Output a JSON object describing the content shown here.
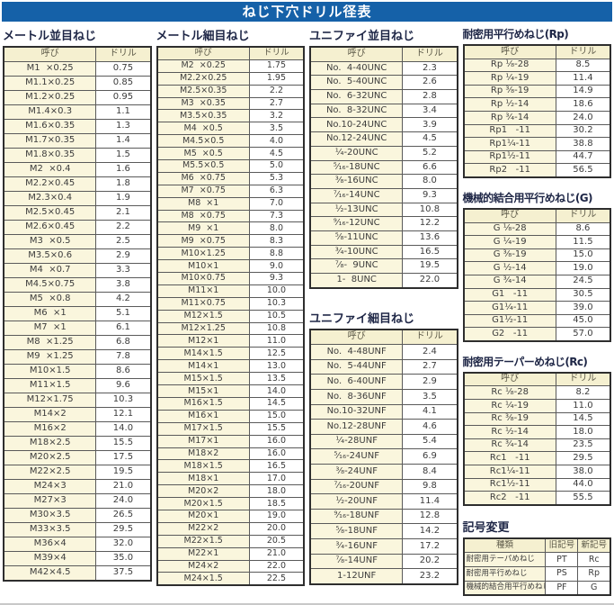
{
  "page": {
    "title": "ねじ下穴ドリル径表"
  },
  "colors": {
    "banner_bg": "#1561a8",
    "banner_text": "#ffffff",
    "title_text": "#1e2646",
    "header_cell_bg": "#f5f0d0",
    "name_cell_bg": "#faf6dd",
    "value_cell_bg": "#ffffff",
    "border": "#5a5a5a"
  },
  "sections": {
    "metric_coarse": {
      "title": "メートル並目ねじ",
      "headers": [
        "呼び",
        "ドリル"
      ],
      "rows": [
        [
          "M1  ×0.25",
          "0.75"
        ],
        [
          "M1.1×0.25",
          "0.85"
        ],
        [
          "M1.2×0.25",
          "0.95"
        ],
        [
          "M1.4×0.3",
          "1.1"
        ],
        [
          "M1.6×0.35",
          "1.3"
        ],
        [
          "M1.7×0.35",
          "1.4"
        ],
        [
          "M1.8×0.35",
          "1.5"
        ],
        [
          "M2  ×0.4",
          "1.6"
        ],
        [
          "M2.2×0.45",
          "1.8"
        ],
        [
          "M2.3×0.4",
          "1.9"
        ],
        [
          "M2.5×0.45",
          "2.1"
        ],
        [
          "M2.6×0.45",
          "2.2"
        ],
        [
          "M3  ×0.5",
          "2.5"
        ],
        [
          "M3.5×0.6",
          "2.9"
        ],
        [
          "M4  ×0.7",
          "3.3"
        ],
        [
          "M4.5×0.75",
          "3.8"
        ],
        [
          "M5  ×0.8",
          "4.2"
        ],
        [
          "M6  ×1",
          "5.1"
        ],
        [
          "M7  ×1",
          "6.1"
        ],
        [
          "M8  ×1.25",
          "6.8"
        ],
        [
          "M9  ×1.25",
          "7.8"
        ],
        [
          "M10×1.5",
          "8.6"
        ],
        [
          "M11×1.5",
          "9.6"
        ],
        [
          "M12×1.75",
          "10.3"
        ],
        [
          "M14×2",
          "12.1"
        ],
        [
          "M16×2",
          "14.0"
        ],
        [
          "M18×2.5",
          "15.5"
        ],
        [
          "M20×2.5",
          "17.5"
        ],
        [
          "M22×2.5",
          "19.5"
        ],
        [
          "M24×3",
          "21.0"
        ],
        [
          "M27×3",
          "24.0"
        ],
        [
          "M30×3.5",
          "26.5"
        ],
        [
          "M33×3.5",
          "29.5"
        ],
        [
          "M36×4",
          "32.0"
        ],
        [
          "M39×4",
          "35.0"
        ],
        [
          "M42×4.5",
          "37.5"
        ]
      ]
    },
    "metric_fine": {
      "title": "メートル細目ねじ",
      "headers": [
        "呼び",
        "ドリル"
      ],
      "rows": [
        [
          "M2  ×0.25",
          "1.75"
        ],
        [
          "M2.2×0.25",
          "1.95"
        ],
        [
          "M2.5×0.35",
          "2.2"
        ],
        [
          "M3  ×0.35",
          "2.7"
        ],
        [
          "M3.5×0.35",
          "3.2"
        ],
        [
          "M4  ×0.5",
          "3.5"
        ],
        [
          "M4.5×0.5",
          "4.0"
        ],
        [
          "M5  ×0.5",
          "4.5"
        ],
        [
          "M5.5×0.5",
          "5.0"
        ],
        [
          "M6  ×0.75",
          "5.3"
        ],
        [
          "M7  ×0.75",
          "6.3"
        ],
        [
          "M8  ×1",
          "7.0"
        ],
        [
          "M8  ×0.75",
          "7.3"
        ],
        [
          "M9  ×1",
          "8.0"
        ],
        [
          "M9  ×0.75",
          "8.3"
        ],
        [
          "M10×1.25",
          "8.8"
        ],
        [
          "M10×1",
          "9.0"
        ],
        [
          "M10×0.75",
          "9.3"
        ],
        [
          "M11×1",
          "10.0"
        ],
        [
          "M11×0.75",
          "10.3"
        ],
        [
          "M12×1.5",
          "10.5"
        ],
        [
          "M12×1.25",
          "10.8"
        ],
        [
          "M12×1",
          "11.0"
        ],
        [
          "M14×1.5",
          "12.5"
        ],
        [
          "M14×1",
          "13.0"
        ],
        [
          "M15×1.5",
          "13.5"
        ],
        [
          "M15×1",
          "14.0"
        ],
        [
          "M16×1.5",
          "14.5"
        ],
        [
          "M16×1",
          "15.0"
        ],
        [
          "M17×1.5",
          "15.5"
        ],
        [
          "M17×1",
          "16.0"
        ],
        [
          "M18×2",
          "16.0"
        ],
        [
          "M18×1.5",
          "16.5"
        ],
        [
          "M18×1",
          "17.0"
        ],
        [
          "M20×2",
          "18.0"
        ],
        [
          "M20×1.5",
          "18.5"
        ],
        [
          "M20×1",
          "19.0"
        ],
        [
          "M22×2",
          "20.0"
        ],
        [
          "M22×1.5",
          "20.5"
        ],
        [
          "M22×1",
          "21.0"
        ],
        [
          "M24×2",
          "22.0"
        ],
        [
          "M24×1.5",
          "22.5"
        ]
      ]
    },
    "unified_coarse": {
      "title": "ユニファイ並目ねじ",
      "headers": [
        "呼び",
        "ドリル"
      ],
      "rows": [
        [
          "No.  4-40UNC",
          "2.3"
        ],
        [
          "No.  5-40UNC",
          "2.6"
        ],
        [
          "No.  6-32UNC",
          "2.8"
        ],
        [
          "No.  8-32UNC",
          "3.4"
        ],
        [
          "No.10-24UNC",
          "3.9"
        ],
        [
          "No.12-24UNC",
          "4.5"
        ],
        [
          "¹⁄₄-20UNC",
          "5.2"
        ],
        [
          "⁵⁄₁₆-18UNC",
          "6.6"
        ],
        [
          "³⁄₈-16UNC",
          "8.0"
        ],
        [
          "⁷⁄₁₆-14UNC",
          "9.3"
        ],
        [
          "¹⁄₂-13UNC",
          "10.8"
        ],
        [
          "⁹⁄₁₆-12UNC",
          "12.2"
        ],
        [
          "⁵⁄₈-11UNC",
          "13.6"
        ],
        [
          "³⁄₄-10UNC",
          "16.5"
        ],
        [
          "⁷⁄₈-  9UNC",
          "19.5"
        ],
        [
          "1-  8UNC",
          "22.0"
        ]
      ]
    },
    "unified_fine": {
      "title": "ユニファイ細目ねじ",
      "headers": [
        "呼び",
        "ドリル"
      ],
      "rows": [
        [
          "No.  4-48UNF",
          "2.4"
        ],
        [
          "No.  5-44UNF",
          "2.7"
        ],
        [
          "No.  6-40UNF",
          "2.9"
        ],
        [
          "No.  8-36UNF",
          "3.5"
        ],
        [
          "No.10-32UNF",
          "4.1"
        ],
        [
          "No.12-28UNF",
          "4.6"
        ],
        [
          "¹⁄₄-28UNF",
          "5.4"
        ],
        [
          "⁵⁄₁₆-24UNF",
          "6.9"
        ],
        [
          "³⁄₈-24UNF",
          "8.4"
        ],
        [
          "⁷⁄₁₆-20UNF",
          "9.8"
        ],
        [
          "¹⁄₂-20UNF",
          "11.4"
        ],
        [
          "⁹⁄₁₆-18UNF",
          "12.8"
        ],
        [
          "⁵⁄₈-18UNF",
          "14.2"
        ],
        [
          "³⁄₄-16UNF",
          "17.2"
        ],
        [
          "⁷⁄₈-14UNF",
          "20.2"
        ],
        [
          "1-12UNF",
          "23.2"
        ]
      ]
    },
    "rp": {
      "title": "耐密用平行めねじ(Rp)",
      "headers": [
        "呼び",
        "ドリル"
      ],
      "rows": [
        [
          "Rp ¹⁄₈-28",
          "8.5"
        ],
        [
          "Rp ¹⁄₄-19",
          "11.4"
        ],
        [
          "Rp ³⁄₈-19",
          "14.9"
        ],
        [
          "Rp ¹⁄₂-14",
          "18.6"
        ],
        [
          "Rp ³⁄₄-14",
          "24.0"
        ],
        [
          "Rp1   -11",
          "30.2"
        ],
        [
          "Rp1¹⁄₄-11",
          "38.8"
        ],
        [
          "Rp1¹⁄₂-11",
          "44.7"
        ],
        [
          "Rp2   -11",
          "56.5"
        ]
      ]
    },
    "g": {
      "title": "機械的結合用平行めねじ(G)",
      "headers": [
        "呼び",
        "ドリル"
      ],
      "rows": [
        [
          "G ¹⁄₈-28",
          "8.6"
        ],
        [
          "G ¹⁄₄-19",
          "11.5"
        ],
        [
          "G ³⁄₈-19",
          "15.0"
        ],
        [
          "G ¹⁄₂-14",
          "19.0"
        ],
        [
          "G ³⁄₄-14",
          "24.5"
        ],
        [
          "G1   -11",
          "30.5"
        ],
        [
          "G1¹⁄₄-11",
          "39.0"
        ],
        [
          "G1¹⁄₂-11",
          "45.0"
        ],
        [
          "G2   -11",
          "57.0"
        ]
      ]
    },
    "rc": {
      "title": "耐密用テーパーめねじ(Rc)",
      "headers": [
        "呼び",
        "ドリル"
      ],
      "rows": [
        [
          "Rc ¹⁄₈-28",
          "8.2"
        ],
        [
          "Rc ¹⁄₄-19",
          "11.0"
        ],
        [
          "Rc ³⁄₈-19",
          "14.5"
        ],
        [
          "Rc ¹⁄₂-14",
          "18.0"
        ],
        [
          "Rc ³⁄₄-14",
          "23.5"
        ],
        [
          "Rc1   -11",
          "29.5"
        ],
        [
          "Rc1¹⁄₄-11",
          "38.0"
        ],
        [
          "Rc1¹⁄₂-11",
          "44.0"
        ],
        [
          "Rc2   -11",
          "55.5"
        ]
      ]
    },
    "symbol_change": {
      "title": "記号変更",
      "headers": [
        "種類",
        "旧記号",
        "新記号"
      ],
      "rows": [
        [
          "耐密用テーパめねじ",
          "PT",
          "Rc"
        ],
        [
          "耐密用平行めねじ",
          "PS",
          "Rp"
        ],
        [
          "機械的結合用平行めねじ",
          "PF",
          "G"
        ]
      ]
    }
  }
}
